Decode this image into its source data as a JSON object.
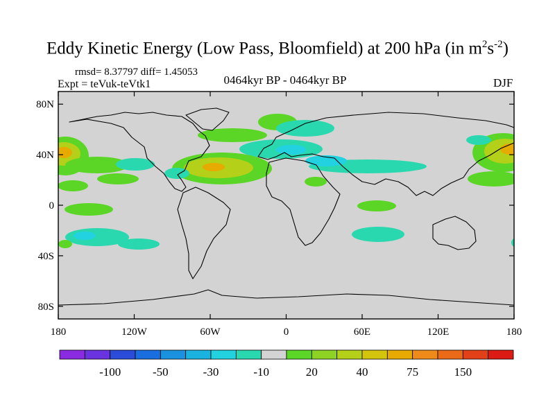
{
  "title": {
    "main": "Eddy Kinetic Energy (Low Pass, Bloomfield) at 200 hPa (in m",
    "sup1": "2",
    "mid": "s",
    "sup2": "-2",
    "close": ")"
  },
  "stats": "rmsd= 8.37797 diff= 1.45053",
  "experiment": "Expt = teVuk-teVtk1",
  "period": "0464kyr BP - 0464kyr BP",
  "season": "DJF",
  "map": {
    "projection": "cylindrical-equidistant",
    "land_background": "#d3d3d3",
    "lat_ticks": [
      "80N",
      "40N",
      "0",
      "40S",
      "80S"
    ],
    "lat_values": [
      80,
      40,
      0,
      -40,
      -80
    ],
    "lon_ticks": [
      "180",
      "120W",
      "60W",
      "0",
      "60E",
      "120E",
      "180"
    ],
    "lon_values": [
      -180,
      -120,
      -60,
      0,
      60,
      120,
      180
    ],
    "extent": {
      "lon": [
        -180,
        180
      ],
      "lat": [
        -90,
        90
      ]
    }
  },
  "colorbar": {
    "colors": [
      "#8a2be2",
      "#6a33e0",
      "#2a4cd8",
      "#1a6ee0",
      "#1b92e0",
      "#1ab2de",
      "#22d2e0",
      "#2ad8b0",
      "#d3d3d3",
      "#5cd626",
      "#8ed224",
      "#b4d018",
      "#d4c40e",
      "#e6aa00",
      "#ee8a1a",
      "#ea6a18",
      "#e24018",
      "#dc1c14"
    ],
    "labels": [
      "-100",
      "-50",
      "-30",
      "-10",
      "20",
      "40",
      "75",
      "150"
    ]
  }
}
